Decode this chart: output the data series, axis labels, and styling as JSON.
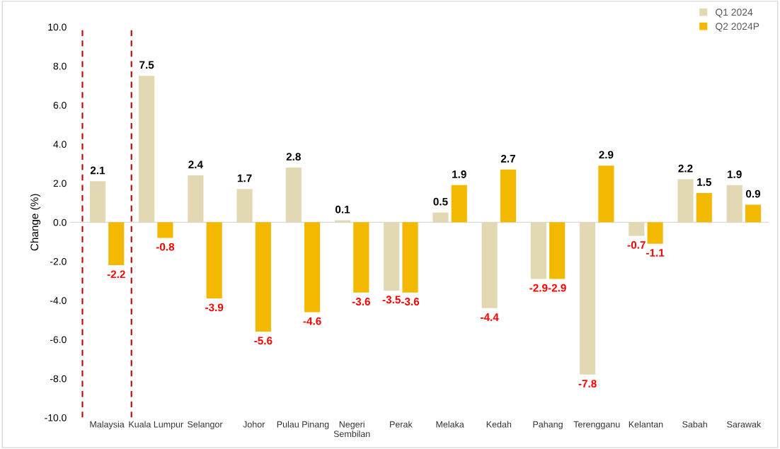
{
  "chart_data": {
    "type": "bar",
    "ylabel": "Change (%)",
    "categories": [
      "Malaysia",
      "Kuala Lumpur",
      "Selangor",
      "Johor",
      "Pulau Pinang",
      "Negeri\nSembilan",
      "Perak",
      "Melaka",
      "Kedah",
      "Pahang",
      "Terengganu",
      "Kelantan",
      "Sabah",
      "Sarawak"
    ],
    "series": [
      {
        "name": "Q1 2024",
        "color": "#e3d8b4",
        "values": [
          2.1,
          7.5,
          2.4,
          1.7,
          2.8,
          0.1,
          -3.5,
          0.5,
          -4.4,
          -2.9,
          -7.8,
          -0.7,
          2.2,
          1.9
        ]
      },
      {
        "name": "Q2 2024P",
        "color": "#f2b900",
        "values": [
          -2.2,
          -0.8,
          -3.9,
          -5.6,
          -4.6,
          -3.6,
          -3.6,
          1.9,
          2.7,
          -2.9,
          2.9,
          -1.1,
          1.5,
          0.9
        ]
      }
    ],
    "ylim": [
      -10,
      10
    ],
    "yticks": [
      {
        "value": -10,
        "label": "-10.0"
      },
      {
        "value": -8,
        "label": "-8.0"
      },
      {
        "value": -6,
        "label": "-6.0"
      },
      {
        "value": -4,
        "label": "-4.0"
      },
      {
        "value": -2,
        "label": "-2.0"
      },
      {
        "value": 0,
        "label": "0.0"
      },
      {
        "value": 2,
        "label": "2.0"
      },
      {
        "value": 4,
        "label": "4.0"
      },
      {
        "value": 6,
        "label": "6.0"
      },
      {
        "value": 8,
        "label": "8.0"
      },
      {
        "value": 10,
        "label": "10.0"
      }
    ],
    "ref_lines": [
      {
        "axis": "y",
        "value": 0,
        "color": "#d9d9d9",
        "line_style": "solid"
      }
    ],
    "data_labels": true,
    "grid": false,
    "legend": "top right"
  }
}
